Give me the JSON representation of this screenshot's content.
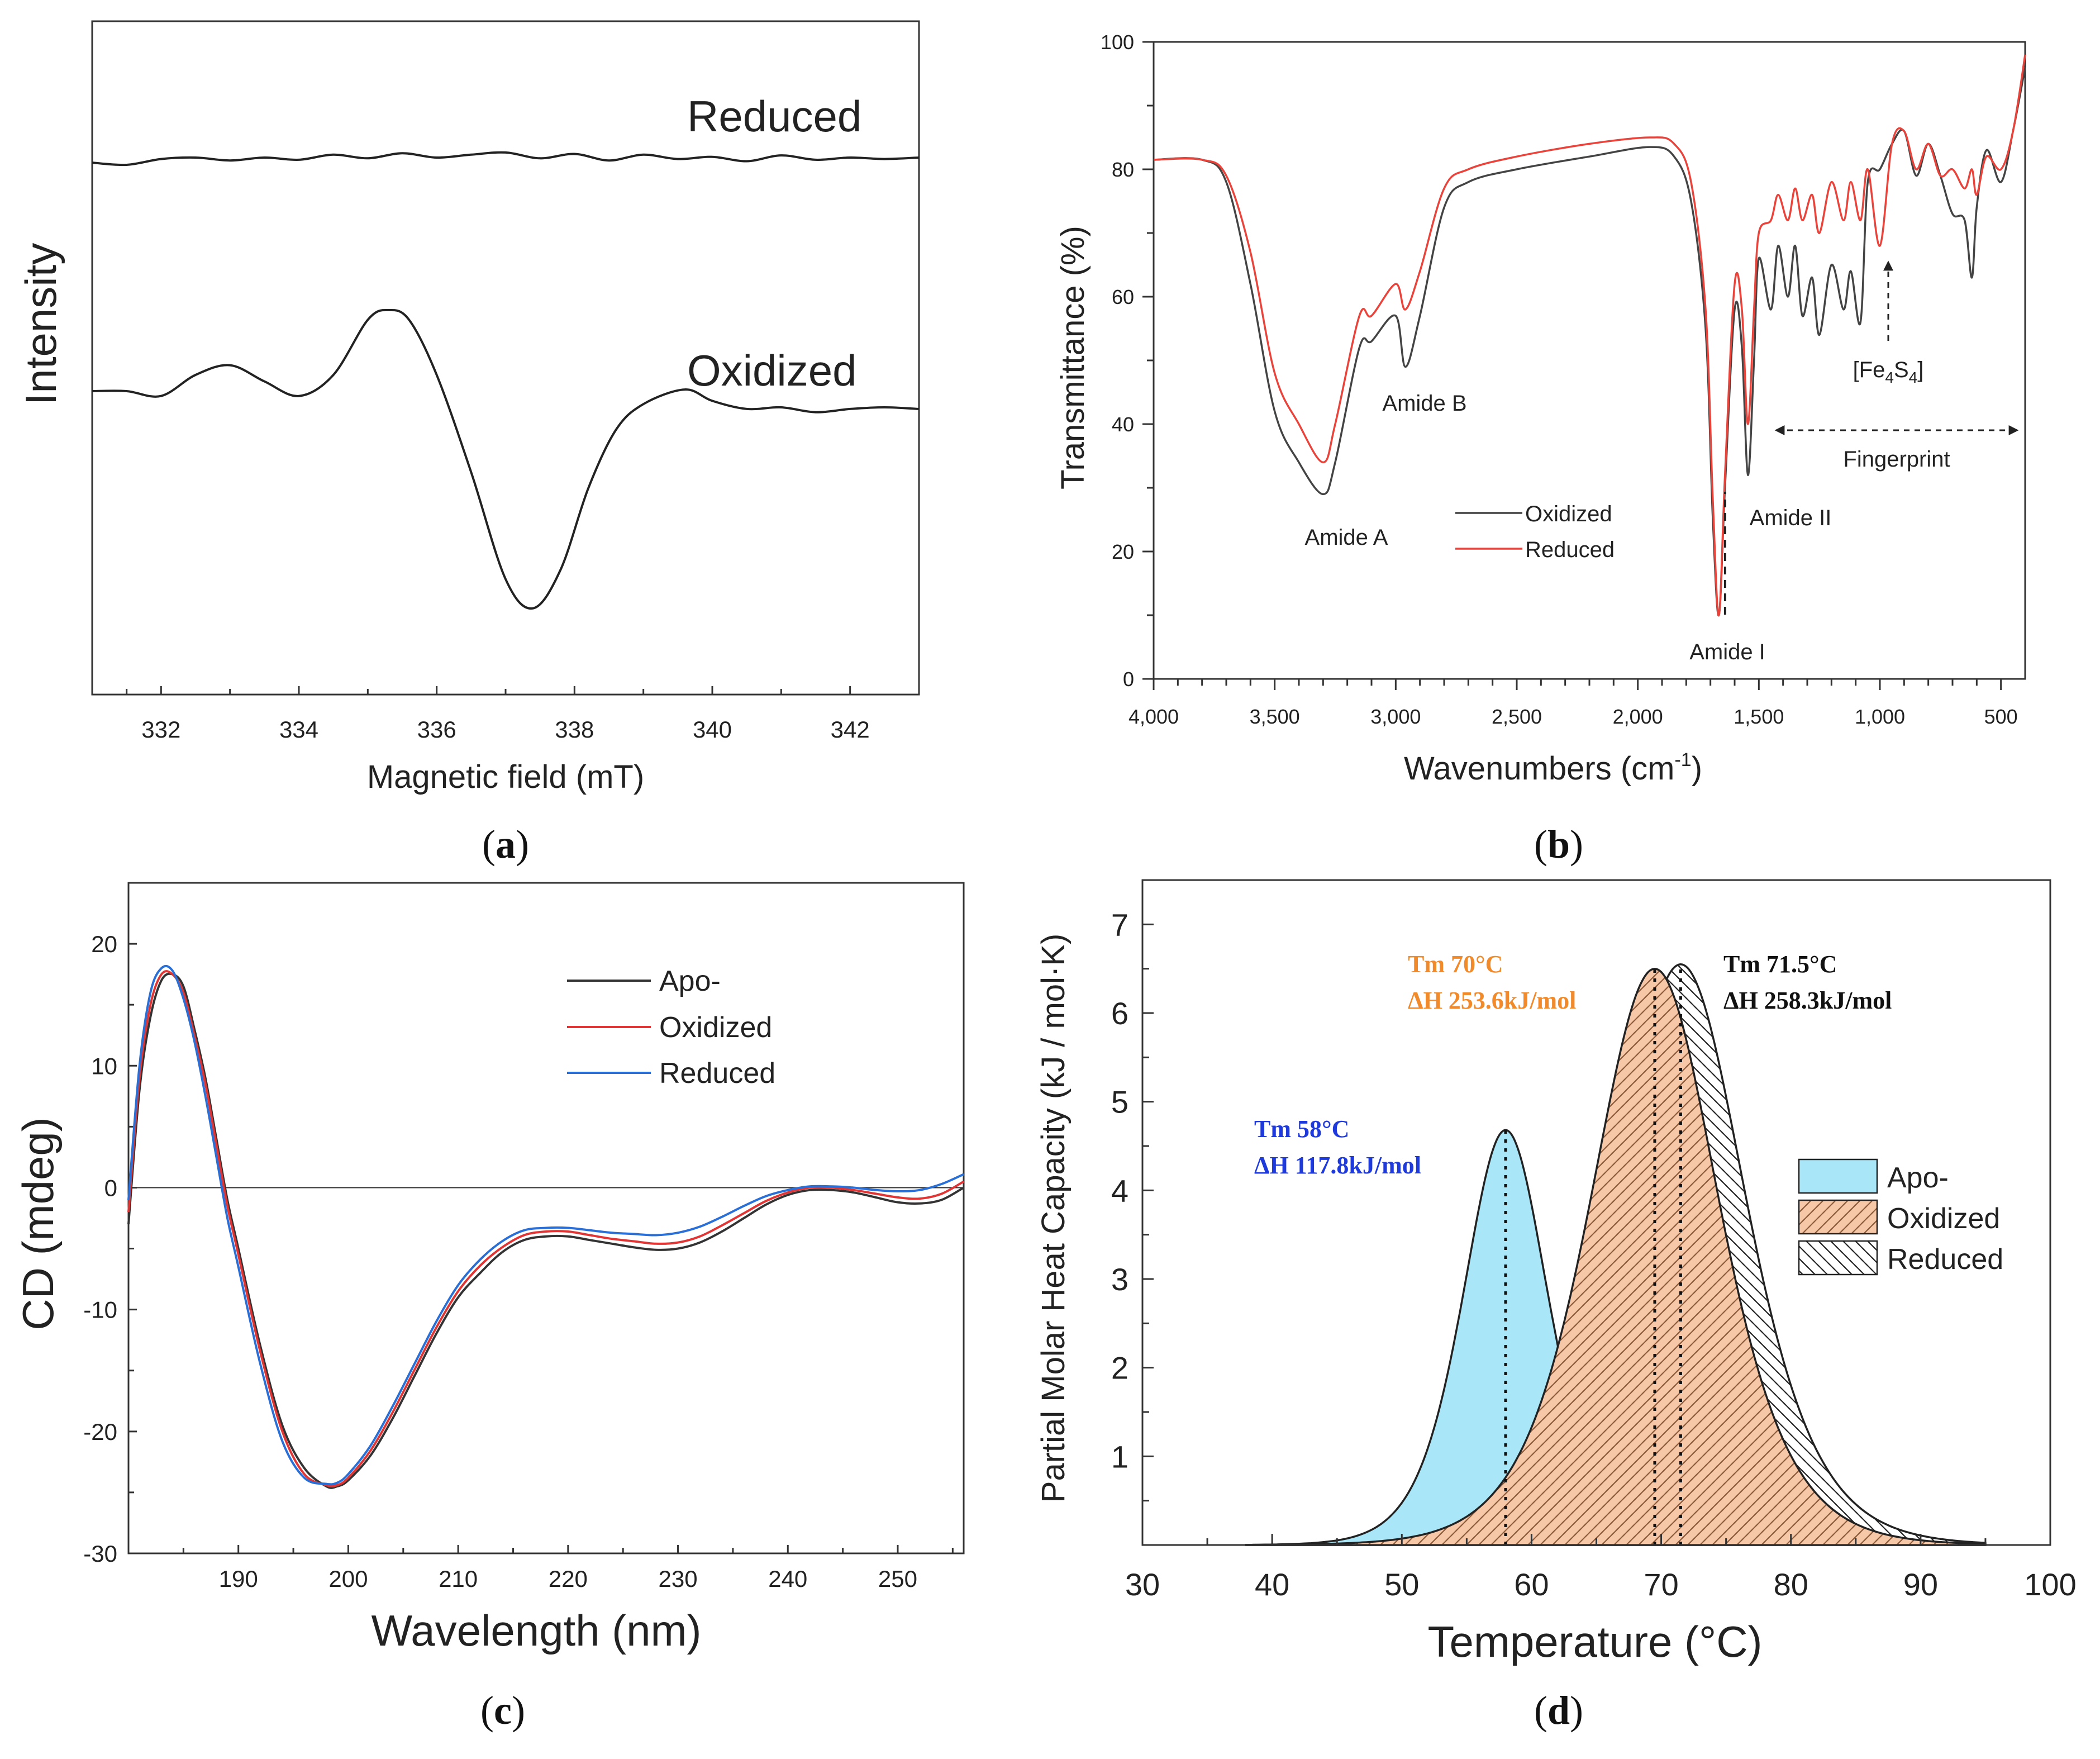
{
  "chart_data": [
    {
      "panel": "a",
      "type": "line",
      "panel_label_open": "(",
      "panel_label_letter": "a",
      "panel_label_close": ")",
      "xlabel": "Magnetic field (mT)",
      "ylabel": "Intensity",
      "xlim": [
        331.0,
        343.0
      ],
      "xticks": [
        "332",
        "334",
        "336",
        "338",
        "340",
        "342"
      ],
      "series": [
        {
          "name": "Reduced",
          "color": "#222222",
          "x": [
            331.0,
            331.5,
            332.0,
            332.5,
            333.0,
            333.5,
            334.0,
            334.5,
            335.0,
            335.5,
            336.0,
            336.5,
            337.0,
            337.5,
            338.0,
            338.5,
            339.0,
            339.5,
            340.0,
            340.5,
            341.0,
            341.5,
            342.0,
            342.5,
            343.0
          ],
          "y": [
            0.3,
            0.0,
            0.8,
            1.0,
            0.6,
            1.0,
            0.7,
            1.4,
            0.9,
            1.6,
            1.0,
            1.4,
            1.7,
            0.9,
            1.5,
            0.6,
            1.4,
            0.8,
            1.1,
            0.5,
            1.3,
            0.7,
            1.0,
            0.8,
            1.0
          ]
        },
        {
          "name": "Oxidized",
          "color": "#222222",
          "x": [
            331.0,
            331.5,
            332.0,
            332.5,
            333.0,
            333.5,
            334.0,
            334.5,
            335.0,
            335.3,
            335.6,
            336.0,
            336.5,
            337.0,
            337.4,
            337.8,
            338.2,
            338.6,
            339.0,
            339.6,
            340.0,
            340.5,
            341.0,
            341.5,
            342.0,
            342.5,
            343.0
          ],
          "y": [
            0.0,
            0.0,
            -0.3,
            1.0,
            1.6,
            0.6,
            -0.3,
            1.0,
            4.4,
            5.0,
            4.4,
            1.0,
            -5.0,
            -11.6,
            -13.4,
            -11.0,
            -6.0,
            -2.4,
            -0.8,
            0.1,
            -0.6,
            -1.1,
            -1.0,
            -1.3,
            -1.1,
            -1.0,
            -1.1
          ]
        }
      ],
      "series_labels": [
        "Reduced",
        "Oxidized"
      ]
    },
    {
      "panel": "b",
      "type": "line",
      "panel_label_open": "(",
      "panel_label_letter": "b",
      "panel_label_close": ")",
      "xlabel_main": "Wavenumbers (cm",
      "xlabel_sup": "-1",
      "xlabel_end": ")",
      "ylabel": "Transmittance (%)",
      "xlim": [
        4000,
        400
      ],
      "ylim": [
        0,
        100
      ],
      "xticks": [
        "4,000",
        "3,500",
        "3,000",
        "2,500",
        "2,000",
        "1,500",
        "1,000",
        "500"
      ],
      "yticks": [
        "0",
        "20",
        "40",
        "60",
        "80",
        "100"
      ],
      "legend": [
        "Oxidized",
        "Reduced"
      ],
      "annotations": {
        "amide_a": "Amide A",
        "amide_b": "Amide B",
        "amide_i": "Amide I",
        "amide_ii": "Amide II",
        "fingerprint": "Fingerprint",
        "fe_open": "[Fe",
        "fe_sub1": "4",
        "fe_s": "S",
        "fe_sub2": "4",
        "fe_close": "]"
      },
      "series": [
        {
          "name": "Oxidized",
          "color": "#444444",
          "x": [
            4000,
            3800,
            3700,
            3600,
            3500,
            3400,
            3300,
            3250,
            3150,
            3100,
            3000,
            2960,
            2900,
            2800,
            2700,
            2500,
            2200,
            1950,
            1850,
            1780,
            1720,
            1690,
            1665,
            1640,
            1600,
            1570,
            1545,
            1520,
            1500,
            1450,
            1420,
            1380,
            1350,
            1320,
            1280,
            1250,
            1200,
            1150,
            1120,
            1080,
            1050,
            1000,
            950,
            900,
            850,
            800,
            750,
            700,
            650,
            620,
            600,
            560,
            500,
            450,
            400
          ],
          "y": [
            81.5,
            81.5,
            78,
            62,
            42,
            34,
            29,
            34,
            52,
            53,
            57,
            49,
            57,
            74,
            78,
            80,
            82,
            83.5,
            82,
            75,
            55,
            25,
            10,
            30,
            58,
            52,
            32,
            50,
            66,
            58,
            68,
            60,
            68,
            57,
            63,
            54,
            65,
            58,
            64,
            56,
            78,
            80,
            84,
            86,
            79,
            84,
            79,
            73,
            72,
            63,
            74,
            83,
            78,
            86,
            96
          ]
        },
        {
          "name": "Reduced",
          "color": "#e8443c",
          "x": [
            4000,
            3800,
            3700,
            3600,
            3500,
            3400,
            3300,
            3250,
            3150,
            3100,
            3000,
            2960,
            2900,
            2800,
            2700,
            2500,
            2200,
            1950,
            1850,
            1780,
            1720,
            1690,
            1665,
            1640,
            1600,
            1570,
            1545,
            1520,
            1500,
            1450,
            1420,
            1380,
            1350,
            1320,
            1280,
            1250,
            1200,
            1150,
            1120,
            1080,
            1050,
            1000,
            950,
            900,
            850,
            800,
            750,
            700,
            650,
            620,
            600,
            560,
            500,
            450,
            400
          ],
          "y": [
            81.5,
            81.5,
            79,
            67,
            48,
            40,
            34,
            40,
            57,
            57,
            62,
            58,
            64,
            77,
            80,
            82,
            84,
            85,
            84,
            78,
            58,
            28,
            10,
            32,
            62,
            58,
            40,
            58,
            70,
            72,
            76,
            72,
            77,
            72,
            76,
            70,
            78,
            72,
            78,
            72,
            80,
            68,
            84,
            86,
            80,
            84,
            79,
            80,
            77,
            80,
            76,
            82,
            80,
            86,
            98
          ]
        }
      ]
    },
    {
      "panel": "c",
      "type": "line",
      "panel_label_open": "(",
      "panel_label_letter": "c",
      "panel_label_close": ")",
      "xlabel": "Wavelength (nm)",
      "ylabel": "CD (mdeg)",
      "xlim": [
        180,
        256
      ],
      "ylim": [
        -30,
        25
      ],
      "xticks": [
        "190",
        "200",
        "210",
        "220",
        "230",
        "240",
        "250"
      ],
      "yticks": [
        "-30",
        "-20",
        "-10",
        "0",
        "10",
        "20"
      ],
      "legend": [
        "Apo-",
        "Oxidized",
        "Reduced"
      ],
      "series": [
        {
          "name": "Apo-",
          "color": "#333333",
          "x": [
            180,
            181,
            182,
            183,
            184,
            185,
            186,
            187,
            188,
            189,
            190,
            192,
            194,
            196,
            198,
            199,
            200,
            202,
            204,
            206,
            208,
            210,
            212,
            214,
            216,
            218,
            220,
            222,
            224,
            226,
            228,
            230,
            232,
            234,
            236,
            238,
            240,
            242,
            244,
            246,
            248,
            250,
            252,
            254,
            256
          ],
          "y": [
            -3,
            8,
            14,
            17,
            17.5,
            16.5,
            13,
            9,
            4,
            -1,
            -5,
            -13,
            -19.5,
            -23,
            -24.5,
            -24.5,
            -24,
            -22,
            -19,
            -15.5,
            -12,
            -9,
            -7,
            -5.3,
            -4.3,
            -4,
            -4,
            -4.3,
            -4.6,
            -4.9,
            -5.1,
            -5,
            -4.5,
            -3.6,
            -2.5,
            -1.4,
            -0.6,
            -0.2,
            -0.2,
            -0.4,
            -0.8,
            -1.2,
            -1.3,
            -1,
            0
          ]
        },
        {
          "name": "Oxidized",
          "color": "#e03535",
          "x": [
            180,
            181,
            182,
            183,
            184,
            185,
            186,
            187,
            188,
            189,
            190,
            192,
            194,
            196,
            198,
            199,
            200,
            202,
            204,
            206,
            208,
            210,
            212,
            214,
            216,
            218,
            220,
            222,
            224,
            226,
            228,
            230,
            232,
            234,
            236,
            238,
            240,
            242,
            244,
            246,
            248,
            250,
            252,
            254,
            256
          ],
          "y": [
            -2,
            9,
            15,
            17.5,
            17.5,
            16,
            12.5,
            8.5,
            3.5,
            -1.5,
            -5.5,
            -13.5,
            -20,
            -23.5,
            -24.4,
            -24.4,
            -23.8,
            -21.6,
            -18.5,
            -15,
            -11.5,
            -8.5,
            -6.4,
            -4.9,
            -3.9,
            -3.6,
            -3.6,
            -3.9,
            -4.2,
            -4.4,
            -4.6,
            -4.5,
            -4,
            -3.1,
            -2.1,
            -1.1,
            -0.4,
            0,
            0,
            -0.2,
            -0.5,
            -0.8,
            -0.9,
            -0.5,
            0.5
          ]
        },
        {
          "name": "Reduced",
          "color": "#2a6fd6",
          "x": [
            180,
            181,
            182,
            183,
            184,
            185,
            186,
            187,
            188,
            189,
            190,
            192,
            194,
            196,
            198,
            199,
            200,
            202,
            204,
            206,
            208,
            210,
            212,
            214,
            216,
            218,
            220,
            222,
            224,
            226,
            228,
            230,
            232,
            234,
            236,
            238,
            240,
            242,
            244,
            246,
            248,
            250,
            252,
            254,
            256
          ],
          "y": [
            -1,
            10,
            16,
            18,
            17.8,
            15.5,
            12,
            7.5,
            2.5,
            -2.5,
            -6.5,
            -14.5,
            -20.8,
            -23.8,
            -24.3,
            -24.2,
            -23.5,
            -21.2,
            -18,
            -14.5,
            -11,
            -8,
            -5.9,
            -4.4,
            -3.5,
            -3.3,
            -3.3,
            -3.5,
            -3.7,
            -3.8,
            -3.9,
            -3.7,
            -3.2,
            -2.4,
            -1.5,
            -0.7,
            -0.2,
            0.1,
            0.1,
            0,
            -0.2,
            -0.3,
            -0.2,
            0.3,
            1.1
          ]
        }
      ]
    },
    {
      "panel": "d",
      "type": "area",
      "panel_label_open": "(",
      "panel_label_letter": "d",
      "panel_label_close": ")",
      "xlabel": "Temperature (°C)",
      "ylabel": "Partial Molar Heat Capacity (kJ / mol·K)",
      "xlim": [
        30,
        100
      ],
      "ylim": [
        0,
        7.5
      ],
      "xticks": [
        "30",
        "40",
        "50",
        "60",
        "70",
        "80",
        "90",
        "100"
      ],
      "yticks": [
        "1",
        "2",
        "3",
        "4",
        "5",
        "6",
        "7"
      ],
      "legend": [
        "Apo-",
        "Oxidized",
        "Reduced"
      ],
      "peaks": [
        {
          "name": "Apo-",
          "tm": 58,
          "height": 4.68,
          "width": 4.2,
          "tm_label": "Tm 58°C",
          "dh_label": "ΔH 117.8kJ/mol",
          "color": "#1f3adb",
          "fill": "#a9e6f7"
        },
        {
          "name": "Oxidized",
          "tm": 69.5,
          "height": 6.5,
          "width": 6.3,
          "tm_label": "Tm 70°C",
          "dh_label": "ΔH 253.6kJ/mol",
          "color": "#f08a2a",
          "fill": "#f7c8a8"
        },
        {
          "name": "Reduced",
          "tm": 71.5,
          "height": 6.55,
          "width": 6.4,
          "tm_label": "Tm 71.5°C",
          "dh_label": "ΔH 258.3kJ/mol",
          "color": "#111111",
          "fill": "#ffffff"
        }
      ]
    }
  ]
}
